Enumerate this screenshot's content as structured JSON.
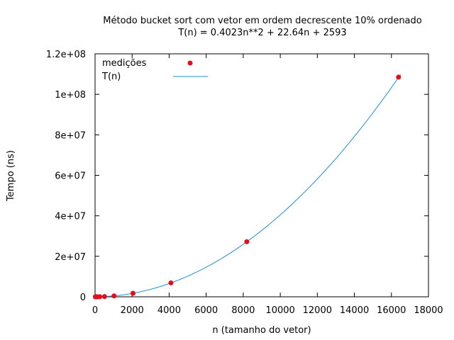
{
  "chart_data": {
    "type": "scatter",
    "title": "Método bucket sort com vetor em ordem decrescente 10% ordenado",
    "subtitle": "T(n) = 0.4023n**2 + 22.64n + 2593",
    "xlabel": "n (tamanho do vetor)",
    "ylabel": "Tempo (ns)",
    "xlim": [
      0,
      18000
    ],
    "ylim": [
      0,
      120000000
    ],
    "x_ticks": [
      0,
      2000,
      4000,
      6000,
      8000,
      10000,
      12000,
      14000,
      16000,
      18000
    ],
    "x_tick_labels": [
      "0",
      "2000",
      "4000",
      "6000",
      "8000",
      "10000",
      "12000",
      "14000",
      "16000",
      "18000"
    ],
    "y_ticks": [
      0,
      20000000,
      40000000,
      60000000,
      80000000,
      100000000,
      120000000
    ],
    "y_tick_labels": [
      "0",
      "2e+07",
      "4e+07",
      "6e+07",
      "8e+07",
      "1e+08",
      "1.2e+08"
    ],
    "grid": false,
    "legend_position": "top-left",
    "series": [
      {
        "name": "medições",
        "kind": "points",
        "color": "#e0101a",
        "x": [
          16,
          32,
          64,
          128,
          256,
          512,
          1024,
          2048,
          4096,
          8192,
          16384
        ],
        "y": [
          3000,
          4000,
          5000,
          10000,
          30000,
          110000,
          440000,
          1750000,
          6850000,
          27200000,
          108500000
        ]
      },
      {
        "name": "T(n)",
        "kind": "fit",
        "color": "#1a8fd8",
        "coefficients": {
          "a": 0.4023,
          "b": 22.64,
          "c": 2593
        },
        "x_range": [
          0,
          16500
        ]
      }
    ]
  }
}
